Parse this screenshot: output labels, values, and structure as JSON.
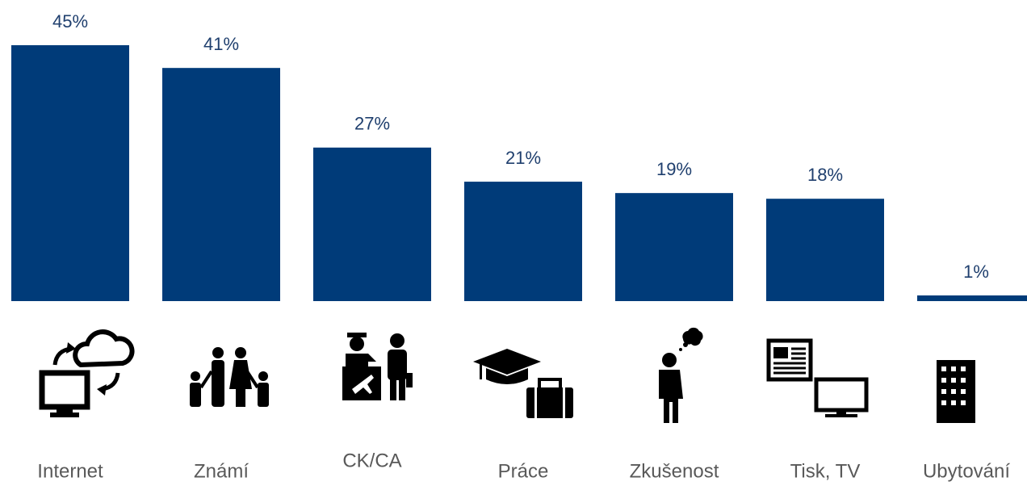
{
  "chart_data": {
    "type": "bar",
    "categories": [
      "Internet",
      "Známí",
      "CK/CA",
      "Práce",
      "Zkušenost",
      "Tisk, TV",
      "Ubytování"
    ],
    "values": [
      45,
      41,
      27,
      21,
      19,
      18,
      1
    ],
    "value_labels": [
      "45%",
      "41%",
      "27%",
      "21%",
      "19%",
      "18%",
      "1%"
    ],
    "color": "#003b79"
  }
}
